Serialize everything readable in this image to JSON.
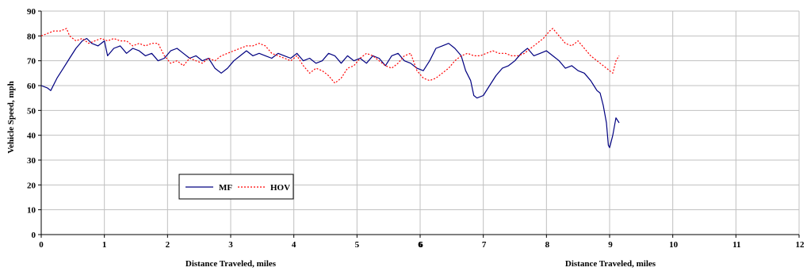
{
  "chart_data": {
    "type": "line",
    "xlabel": "Distance Traveled, miles",
    "xlabel_right": "Distance Traveled, miles",
    "ylabel": "Vehicle Speed, mph",
    "xlim": [
      0,
      12
    ],
    "ylim": [
      0,
      90
    ],
    "left_panel_x_ticks": [
      0,
      1,
      2,
      3,
      4,
      5,
      6
    ],
    "right_panel_x_ticks": [
      6,
      7,
      8,
      9,
      10,
      11,
      12
    ],
    "y_ticks": [
      0,
      10,
      20,
      30,
      40,
      50,
      60,
      70,
      80,
      90
    ],
    "grid": true,
    "legend": "lower-left",
    "series": [
      {
        "name": "MF",
        "color": "#000080",
        "style": "solid",
        "x": [
          0,
          0.1,
          0.15,
          0.25,
          0.35,
          0.45,
          0.55,
          0.65,
          0.72,
          0.8,
          0.9,
          1.0,
          1.05,
          1.15,
          1.25,
          1.35,
          1.45,
          1.55,
          1.65,
          1.75,
          1.85,
          1.95,
          2.05,
          2.15,
          2.25,
          2.35,
          2.45,
          2.55,
          2.65,
          2.75,
          2.85,
          2.95,
          3.05,
          3.15,
          3.25,
          3.35,
          3.45,
          3.55,
          3.65,
          3.75,
          3.85,
          3.95,
          4.05,
          4.15,
          4.25,
          4.35,
          4.45,
          4.55,
          4.65,
          4.75,
          4.85,
          4.95,
          5.05,
          5.15,
          5.25,
          5.35,
          5.45,
          5.55,
          5.65,
          5.75,
          5.85,
          5.95,
          6.05,
          6.15,
          6.25,
          6.35,
          6.45,
          6.55,
          6.65,
          6.72,
          6.8,
          6.85,
          6.9,
          7.0,
          7.1,
          7.2,
          7.3,
          7.4,
          7.5,
          7.6,
          7.7,
          7.8,
          7.9,
          8.0,
          8.1,
          8.2,
          8.3,
          8.4,
          8.5,
          8.6,
          8.7,
          8.75,
          8.8,
          8.85,
          8.9,
          8.95,
          8.98,
          9.0,
          9.05,
          9.1,
          9.15
        ],
        "y": [
          60,
          59,
          58,
          63,
          67,
          71,
          75,
          78,
          79,
          77,
          76,
          78,
          72,
          75,
          76,
          73,
          75,
          74,
          72,
          73,
          70,
          71,
          74,
          75,
          73,
          71,
          72,
          70,
          71,
          67,
          65,
          67,
          70,
          72,
          74,
          72,
          73,
          72,
          71,
          73,
          72,
          71,
          73,
          70,
          71,
          69,
          70,
          73,
          72,
          69,
          72,
          70,
          71,
          69,
          72,
          71,
          68,
          72,
          73,
          70,
          69,
          67,
          66,
          70,
          75,
          76,
          77,
          75,
          72,
          66,
          62,
          56,
          55,
          56,
          60,
          64,
          67,
          68,
          70,
          73,
          75,
          72,
          73,
          74,
          72,
          70,
          67,
          68,
          66,
          65,
          62,
          60,
          58,
          57,
          52,
          45,
          36,
          35,
          40,
          47,
          45
        ]
      },
      {
        "name": "HOV",
        "color": "#ff0000",
        "style": "dotted",
        "x": [
          0,
          0.1,
          0.2,
          0.3,
          0.4,
          0.45,
          0.55,
          0.65,
          0.75,
          0.85,
          0.95,
          1.05,
          1.15,
          1.25,
          1.35,
          1.45,
          1.55,
          1.65,
          1.75,
          1.85,
          1.95,
          2.05,
          2.15,
          2.25,
          2.35,
          2.45,
          2.55,
          2.65,
          2.75,
          2.85,
          2.95,
          3.05,
          3.15,
          3.25,
          3.35,
          3.45,
          3.55,
          3.65,
          3.75,
          3.85,
          3.95,
          4.05,
          4.15,
          4.25,
          4.35,
          4.45,
          4.55,
          4.65,
          4.75,
          4.85,
          4.95,
          5.05,
          5.15,
          5.25,
          5.35,
          5.45,
          5.55,
          5.65,
          5.75,
          5.85,
          5.95,
          6.05,
          6.15,
          6.25,
          6.35,
          6.45,
          6.55,
          6.65,
          6.75,
          6.85,
          6.95,
          7.05,
          7.15,
          7.25,
          7.35,
          7.45,
          7.55,
          7.65,
          7.75,
          7.85,
          7.95,
          8.05,
          8.1,
          8.2,
          8.3,
          8.4,
          8.5,
          8.6,
          8.7,
          8.8,
          8.9,
          9.0,
          9.05,
          9.1,
          9.15
        ],
        "y": [
          80,
          81,
          82,
          82,
          83,
          80,
          78,
          79,
          77,
          78,
          79,
          78,
          79,
          78,
          78,
          76,
          77,
          76,
          77,
          77,
          72,
          69,
          70,
          68,
          71,
          70,
          69,
          71,
          70,
          72,
          73,
          74,
          75,
          76,
          76,
          77,
          76,
          73,
          72,
          71,
          70,
          72,
          68,
          65,
          67,
          66,
          64,
          61,
          63,
          67,
          68,
          71,
          73,
          72,
          70,
          68,
          67,
          69,
          72,
          73,
          66,
          63,
          62,
          63,
          65,
          67,
          70,
          72,
          73,
          72,
          72,
          73,
          74,
          73,
          73,
          72,
          72,
          73,
          75,
          77,
          79,
          82,
          83,
          80,
          77,
          76,
          78,
          75,
          72,
          70,
          68,
          66,
          65,
          70,
          72
        ]
      }
    ]
  }
}
